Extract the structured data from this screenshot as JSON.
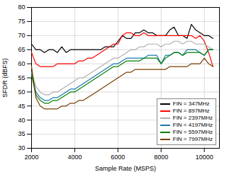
{
  "chart_data": {
    "type": "line",
    "xlabel": "Sample Rate (MSPS)",
    "ylabel": "SFDR (dBFS)",
    "xlim": [
      2000,
      10700
    ],
    "ylim": [
      30,
      80
    ],
    "xticks": [
      2000,
      4000,
      6000,
      8000,
      10000
    ],
    "yticks": [
      30,
      35,
      40,
      45,
      50,
      55,
      60,
      65,
      70,
      75,
      80
    ],
    "grid": true,
    "legend": "lower right",
    "x": [
      2000,
      2200,
      2400,
      2600,
      2800,
      3000,
      3200,
      3400,
      3600,
      3800,
      4000,
      4200,
      4400,
      4600,
      4800,
      5000,
      5200,
      5400,
      5600,
      5800,
      6000,
      6200,
      6400,
      6600,
      6800,
      7000,
      7200,
      7400,
      7600,
      7800,
      8000,
      8200,
      8400,
      8600,
      8800,
      9000,
      9200,
      9400,
      9600,
      9800,
      10000,
      10200,
      10400
    ],
    "series": [
      {
        "name": "FIN = 347MHz",
        "color": "#000000",
        "values": [
          67,
          65,
          65,
          64,
          65,
          65,
          64,
          66,
          64,
          65,
          65,
          65,
          65,
          65,
          65,
          65,
          65,
          66,
          66,
          66,
          68,
          70,
          69,
          69,
          71,
          71,
          72,
          71,
          71,
          70,
          70,
          70,
          72,
          73,
          70,
          70,
          69,
          74,
          72,
          71,
          70,
          70,
          69
        ]
      },
      {
        "name": "FIN = 897MHz",
        "color": "#ff0000",
        "values": [
          64,
          60,
          59,
          59,
          59,
          59,
          60,
          60,
          60,
          60,
          60,
          61,
          61,
          62,
          62,
          63,
          64,
          65,
          66,
          67,
          67,
          70,
          71,
          71,
          70,
          70,
          71,
          70,
          70,
          70,
          70,
          70,
          70,
          70,
          70,
          70,
          70,
          70,
          69,
          70,
          68,
          64,
          59
        ]
      },
      {
        "name": "FIN = 2397MHz",
        "color": "#b0b0b0",
        "values": [
          57,
          52,
          50,
          49,
          49,
          50,
          50,
          51,
          52,
          53,
          54,
          55,
          55,
          56,
          57,
          58,
          59,
          60,
          61,
          62,
          62,
          63,
          64,
          65,
          65,
          66,
          66,
          67,
          67,
          67,
          66,
          67,
          67,
          68,
          68,
          67,
          68,
          68,
          67,
          67,
          67,
          66,
          65
        ]
      },
      {
        "name": "FIN = 4197MHz",
        "color": "#1a7aad",
        "values": [
          57,
          50,
          48,
          47,
          47,
          48,
          48,
          49,
          50,
          51,
          51,
          52,
          53,
          54,
          55,
          56,
          57,
          58,
          59,
          60,
          60,
          61,
          62,
          62,
          62,
          62,
          62,
          63,
          63,
          63,
          60,
          63,
          63,
          64,
          64,
          63,
          65,
          65,
          65,
          64,
          63,
          65,
          65
        ]
      },
      {
        "name": "FIN = 5597MHz",
        "color": "#008000",
        "values": [
          56,
          49,
          47,
          46,
          46,
          47,
          47,
          48,
          49,
          50,
          50,
          51,
          52,
          53,
          54,
          55,
          56,
          57,
          58,
          59,
          59,
          60,
          61,
          61,
          61,
          61,
          62,
          62,
          62,
          62,
          60,
          62,
          63,
          64,
          64,
          63,
          64,
          64,
          64,
          64,
          63,
          65,
          65
        ]
      },
      {
        "name": "FIN = 7997MHz",
        "color": "#7b3f00",
        "values": [
          59,
          48,
          45,
          44,
          44,
          44,
          44,
          45,
          45,
          46,
          46,
          47,
          47,
          48,
          49,
          50,
          51,
          52,
          53,
          54,
          55,
          56,
          57,
          57,
          58,
          58,
          58,
          58,
          58,
          58,
          58,
          58,
          59,
          59,
          59,
          59,
          59,
          60,
          60,
          60,
          62,
          60,
          59
        ]
      }
    ]
  }
}
